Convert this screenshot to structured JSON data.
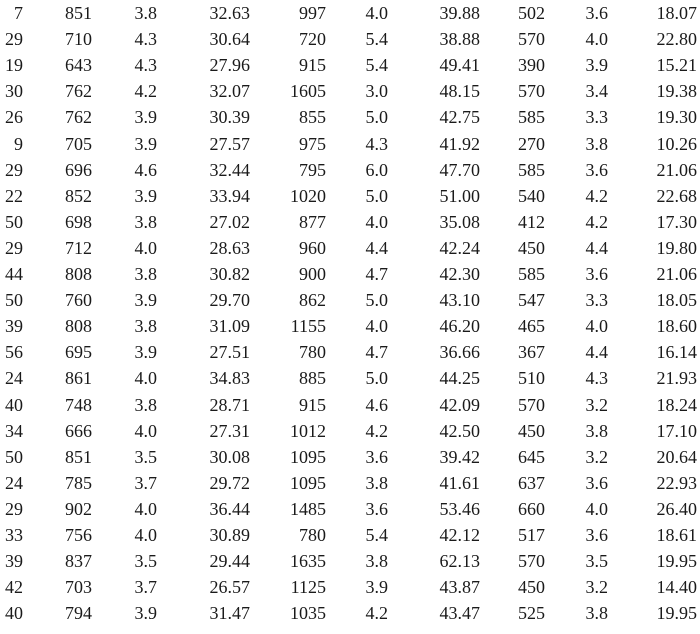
{
  "table": {
    "rows": [
      [
        "7",
        "851",
        "3.8",
        "32.63",
        "997",
        "4.0",
        "39.88",
        "502",
        "3.6",
        "18.07"
      ],
      [
        "29",
        "710",
        "4.3",
        "30.64",
        "720",
        "5.4",
        "38.88",
        "570",
        "4.0",
        "22.80"
      ],
      [
        "19",
        "643",
        "4.3",
        "27.96",
        "915",
        "5.4",
        "49.41",
        "390",
        "3.9",
        "15.21"
      ],
      [
        "30",
        "762",
        "4.2",
        "32.07",
        "1605",
        "3.0",
        "48.15",
        "570",
        "3.4",
        "19.38"
      ],
      [
        "26",
        "762",
        "3.9",
        "30.39",
        "855",
        "5.0",
        "42.75",
        "585",
        "3.3",
        "19.30"
      ],
      [
        "9",
        "705",
        "3.9",
        "27.57",
        "975",
        "4.3",
        "41.92",
        "270",
        "3.8",
        "10.26"
      ],
      [
        "29",
        "696",
        "4.6",
        "32.44",
        "795",
        "6.0",
        "47.70",
        "585",
        "3.6",
        "21.06"
      ],
      [
        "22",
        "852",
        "3.9",
        "33.94",
        "1020",
        "5.0",
        "51.00",
        "540",
        "4.2",
        "22.68"
      ],
      [
        "50",
        "698",
        "3.8",
        "27.02",
        "877",
        "4.0",
        "35.08",
        "412",
        "4.2",
        "17.30"
      ],
      [
        "29",
        "712",
        "4.0",
        "28.63",
        "960",
        "4.4",
        "42.24",
        "450",
        "4.4",
        "19.80"
      ],
      [
        "44",
        "808",
        "3.8",
        "30.82",
        "900",
        "4.7",
        "42.30",
        "585",
        "3.6",
        "21.06"
      ],
      [
        "50",
        "760",
        "3.9",
        "29.70",
        "862",
        "5.0",
        "43.10",
        "547",
        "3.3",
        "18.05"
      ],
      [
        "39",
        "808",
        "3.8",
        "31.09",
        "1155",
        "4.0",
        "46.20",
        "465",
        "4.0",
        "18.60"
      ],
      [
        "56",
        "695",
        "3.9",
        "27.51",
        "780",
        "4.7",
        "36.66",
        "367",
        "4.4",
        "16.14"
      ],
      [
        "24",
        "861",
        "4.0",
        "34.83",
        "885",
        "5.0",
        "44.25",
        "510",
        "4.3",
        "21.93"
      ],
      [
        "40",
        "748",
        "3.8",
        "28.71",
        "915",
        "4.6",
        "42.09",
        "570",
        "3.2",
        "18.24"
      ],
      [
        "34",
        "666",
        "4.0",
        "27.31",
        "1012",
        "4.2",
        "42.50",
        "450",
        "3.8",
        "17.10"
      ],
      [
        "50",
        "851",
        "3.5",
        "30.08",
        "1095",
        "3.6",
        "39.42",
        "645",
        "3.2",
        "20.64"
      ],
      [
        "24",
        "785",
        "3.7",
        "29.72",
        "1095",
        "3.8",
        "41.61",
        "637",
        "3.6",
        "22.93"
      ],
      [
        "29",
        "902",
        "4.0",
        "36.44",
        "1485",
        "3.6",
        "53.46",
        "660",
        "4.0",
        "26.40"
      ],
      [
        "33",
        "756",
        "4.0",
        "30.89",
        "780",
        "5.4",
        "42.12",
        "517",
        "3.6",
        "18.61"
      ],
      [
        "39",
        "837",
        "3.5",
        "29.44",
        "1635",
        "3.8",
        "62.13",
        "570",
        "3.5",
        "19.95"
      ],
      [
        "42",
        "703",
        "3.7",
        "26.57",
        "1125",
        "3.9",
        "43.87",
        "450",
        "3.2",
        "14.40"
      ],
      [
        "40",
        "794",
        "3.9",
        "31.47",
        "1035",
        "4.2",
        "43.47",
        "525",
        "3.8",
        "19.95"
      ]
    ]
  }
}
